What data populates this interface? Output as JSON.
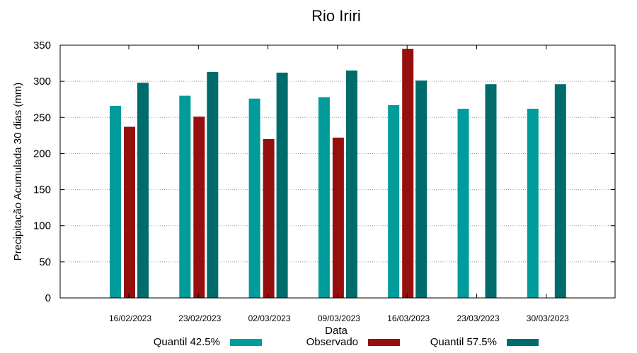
{
  "chart_data": {
    "type": "bar",
    "title": "Rio Iriri",
    "xlabel": "Data",
    "ylabel": "Precipitação Acumulada 30 dias (mm)",
    "ylim": [
      0,
      350
    ],
    "yticks": [
      0,
      50,
      100,
      150,
      200,
      250,
      300,
      350
    ],
    "grid": true,
    "legend_position": "bottom",
    "categories": [
      "16/02/2023",
      "23/02/2023",
      "02/03/2023",
      "09/03/2023",
      "16/03/2023",
      "23/03/2023",
      "30/03/2023"
    ],
    "series": [
      {
        "name": "Quantil 42.5%",
        "color": "#009b9b",
        "values": [
          266,
          280,
          276,
          278,
          267,
          262,
          262
        ]
      },
      {
        "name": "Observado",
        "color": "#960f0f",
        "values": [
          237,
          251,
          220,
          222,
          345,
          null,
          null
        ]
      },
      {
        "name": "Quantil 57.5%",
        "color": "#006b6b",
        "values": [
          298,
          313,
          312,
          315,
          301,
          296,
          296
        ]
      }
    ]
  }
}
